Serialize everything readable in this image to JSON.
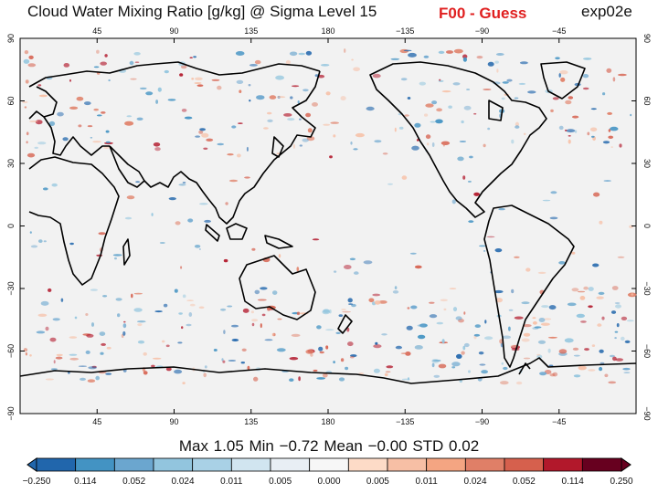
{
  "header": {
    "title": "Cloud Water Mixing Ratio [g/kg] @ Sigma Level 15",
    "subtitle": "F00 - Guess",
    "experiment": "exp02e"
  },
  "stats": {
    "text": "Max 1.05    Min −0.72    Mean −0.00    STD 0.02"
  },
  "colors": {
    "background": "#f2f2f2",
    "coast": "#000000",
    "title_accent": "#e02020",
    "colorbar": [
      "#2166ac",
      "#4393c3",
      "#6ba6cf",
      "#92c5de",
      "#a9d1e6",
      "#d1e5f0",
      "#e8eef4",
      "#f7f7f7",
      "#fddbc7",
      "#f7bfa5",
      "#f4a582",
      "#e07f67",
      "#d6604d",
      "#b2182b",
      "#67001f"
    ]
  },
  "chart_data": {
    "type": "heatmap",
    "title": "Cloud Water Mixing Ratio [g/kg] @ Sigma Level 15",
    "subtitle": "F00 - Guess",
    "projection": "cylindrical equidistant, centered on 180",
    "x_ticks": [
      "45",
      "90",
      "135",
      "180",
      "−135",
      "−90",
      "−45"
    ],
    "y_ticks": [
      "90",
      "60",
      "30",
      "0",
      "−30",
      "−60",
      "−90"
    ],
    "xlim": [
      0,
      360
    ],
    "ylim": [
      -90,
      90
    ],
    "colorbar_labels": [
      "−0.250",
      "0.114",
      "0.052",
      "0.024",
      "0.011",
      "0.005",
      "0.000",
      "0.005",
      "0.011",
      "0.024",
      "0.052",
      "0.114",
      "0.250"
    ],
    "colorbar_min_arrow": true,
    "colorbar_max_arrow": true,
    "statistics": {
      "max": 1.05,
      "min": -0.72,
      "mean": -0.0,
      "std": 0.02
    }
  }
}
